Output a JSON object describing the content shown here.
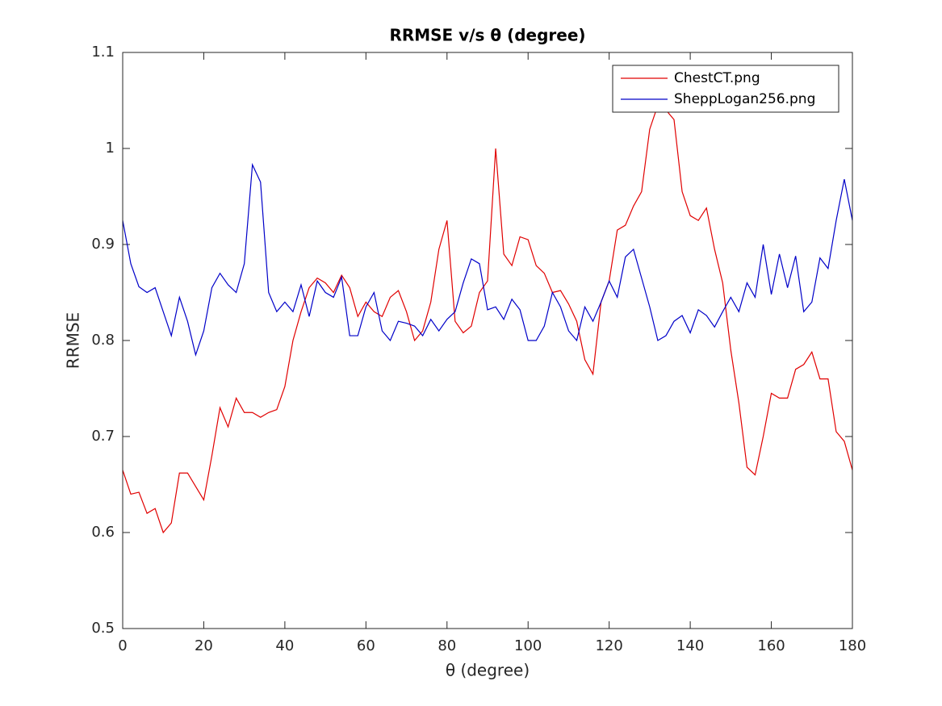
{
  "chart_data": {
    "type": "line",
    "title": "RRMSE v/s θ (degree)",
    "xlabel": "θ (degree)",
    "ylabel": "RRMSE",
    "x": [
      0,
      2,
      4,
      6,
      8,
      10,
      12,
      14,
      16,
      18,
      20,
      22,
      24,
      26,
      28,
      30,
      32,
      34,
      36,
      38,
      40,
      42,
      44,
      46,
      48,
      50,
      52,
      54,
      56,
      58,
      60,
      62,
      64,
      66,
      68,
      70,
      72,
      74,
      76,
      78,
      80,
      82,
      84,
      86,
      88,
      90,
      92,
      94,
      96,
      98,
      100,
      102,
      104,
      106,
      108,
      110,
      112,
      114,
      116,
      118,
      120,
      122,
      124,
      126,
      128,
      130,
      132,
      134,
      136,
      138,
      140,
      142,
      144,
      146,
      148,
      150,
      152,
      154,
      156,
      158,
      160,
      162,
      164,
      166,
      168,
      170,
      172,
      174,
      176,
      178,
      180
    ],
    "series": [
      {
        "name": "ChestCT.png",
        "color": "#e00000",
        "values": [
          0.665,
          0.64,
          0.642,
          0.62,
          0.625,
          0.6,
          0.61,
          0.662,
          0.662,
          0.648,
          0.634,
          0.68,
          0.73,
          0.71,
          0.74,
          0.725,
          0.725,
          0.72,
          0.725,
          0.728,
          0.752,
          0.8,
          0.83,
          0.855,
          0.865,
          0.86,
          0.85,
          0.868,
          0.855,
          0.825,
          0.84,
          0.83,
          0.825,
          0.845,
          0.852,
          0.83,
          0.8,
          0.81,
          0.84,
          0.895,
          0.925,
          0.82,
          0.808,
          0.815,
          0.85,
          0.862,
          1.0,
          0.89,
          0.878,
          0.908,
          0.905,
          0.878,
          0.87,
          0.85,
          0.852,
          0.838,
          0.82,
          0.78,
          0.765,
          0.84,
          0.862,
          0.915,
          0.92,
          0.94,
          0.955,
          1.02,
          1.045,
          1.04,
          1.03,
          0.955,
          0.93,
          0.925,
          0.938,
          0.895,
          0.86,
          0.79,
          0.735,
          0.668,
          0.66,
          0.7,
          0.745,
          0.74,
          0.74,
          0.77,
          0.775,
          0.788,
          0.76,
          0.76,
          0.705,
          0.695,
          0.665
        ]
      },
      {
        "name": "SheppLogan256.png",
        "color": "#0000c8",
        "values": [
          0.925,
          0.88,
          0.856,
          0.85,
          0.855,
          0.83,
          0.805,
          0.845,
          0.82,
          0.785,
          0.81,
          0.855,
          0.87,
          0.858,
          0.85,
          0.88,
          0.983,
          0.965,
          0.85,
          0.83,
          0.84,
          0.83,
          0.858,
          0.825,
          0.862,
          0.85,
          0.845,
          0.866,
          0.805,
          0.805,
          0.835,
          0.85,
          0.81,
          0.8,
          0.82,
          0.818,
          0.815,
          0.805,
          0.822,
          0.81,
          0.822,
          0.83,
          0.86,
          0.885,
          0.88,
          0.832,
          0.835,
          0.822,
          0.843,
          0.832,
          0.8,
          0.8,
          0.815,
          0.85,
          0.835,
          0.81,
          0.8,
          0.835,
          0.82,
          0.84,
          0.862,
          0.845,
          0.887,
          0.895,
          0.865,
          0.835,
          0.8,
          0.805,
          0.82,
          0.826,
          0.808,
          0.832,
          0.826,
          0.814,
          0.83,
          0.845,
          0.83,
          0.86,
          0.845,
          0.9,
          0.848,
          0.89,
          0.855,
          0.888,
          0.83,
          0.84,
          0.886,
          0.875,
          0.925,
          0.968,
          0.925
        ]
      }
    ],
    "xlim": [
      0,
      180
    ],
    "xticks": [
      0,
      20,
      40,
      60,
      80,
      100,
      120,
      140,
      160,
      180
    ],
    "ylim": [
      0.5,
      1.1
    ],
    "yticks": [
      0.5,
      0.6,
      0.7,
      0.8,
      0.9,
      1,
      1.1
    ],
    "legend": "upper-right"
  }
}
